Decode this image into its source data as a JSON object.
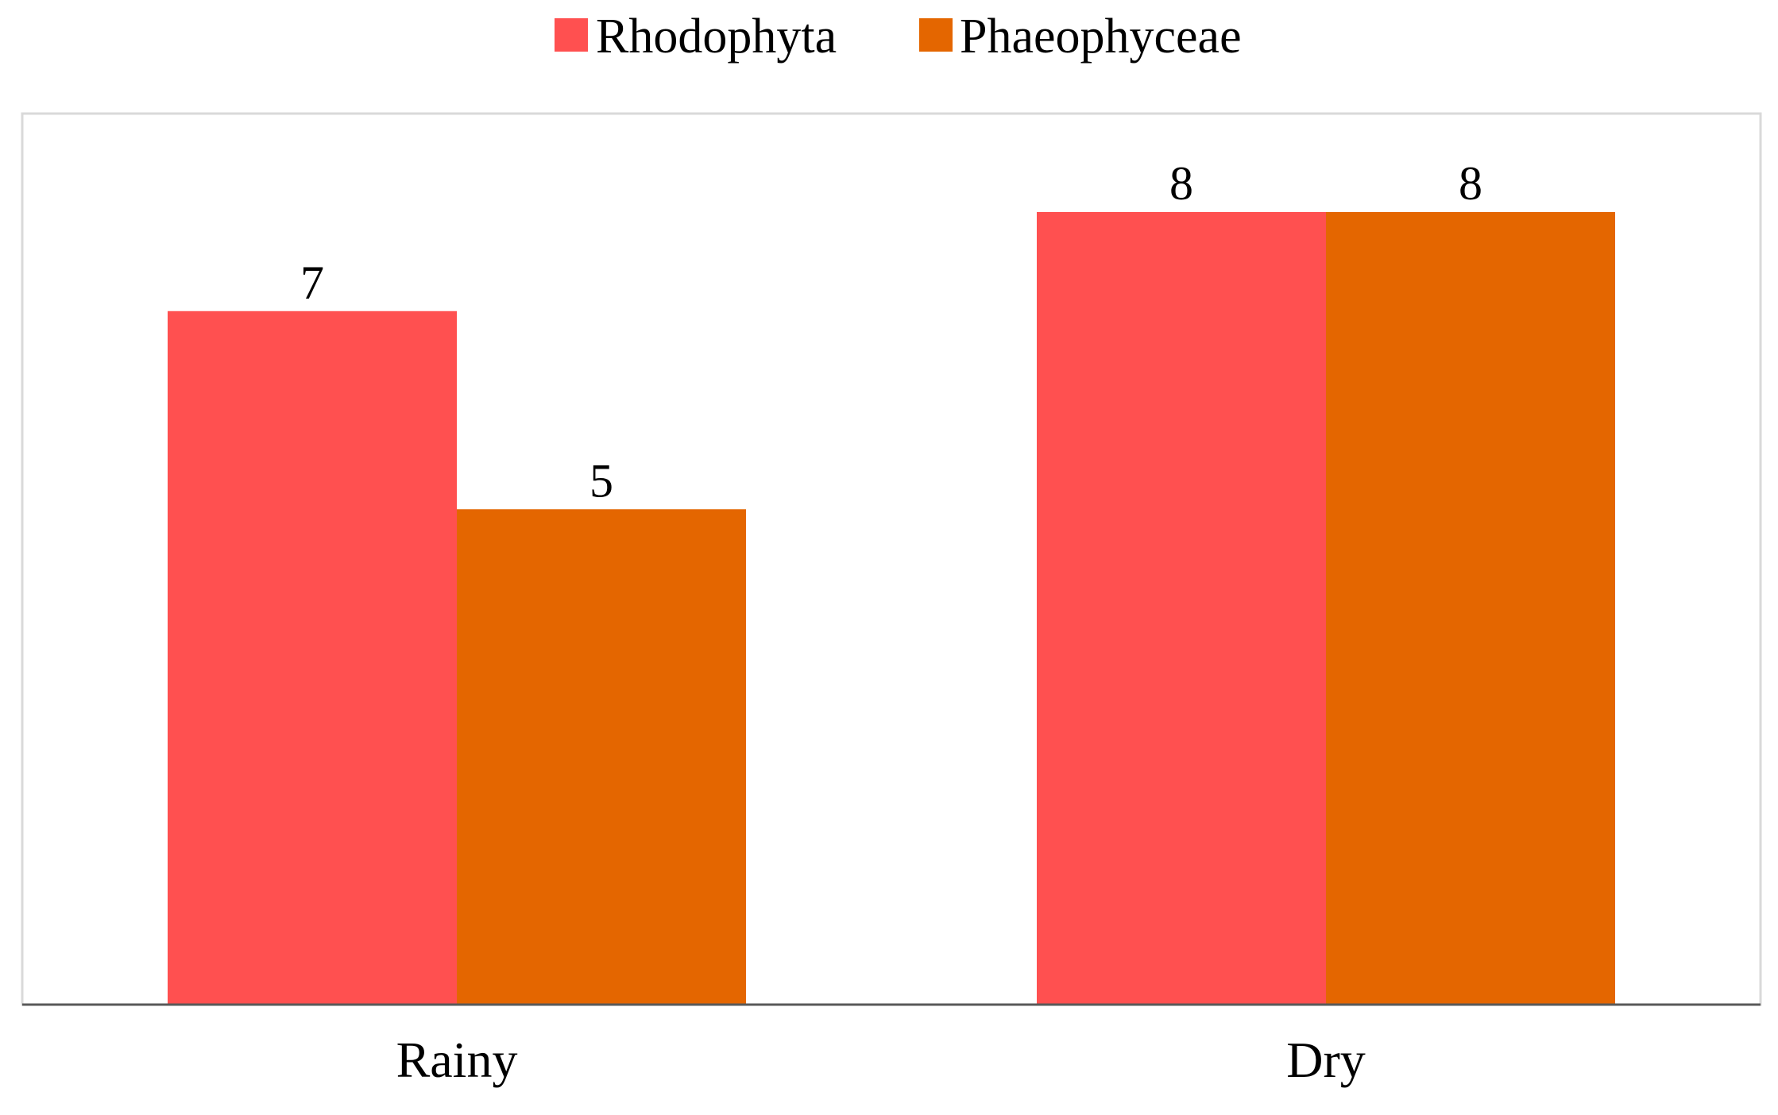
{
  "chart_data": {
    "type": "bar",
    "title": "",
    "xlabel": "",
    "ylabel": "",
    "categories": [
      "Rainy",
      "Dry"
    ],
    "series": [
      {
        "name": "Rhodophyta",
        "values": [
          7,
          8
        ],
        "color": "#FF5050"
      },
      {
        "name": "Phaeophyceae",
        "values": [
          5,
          8
        ],
        "color": "#E46600"
      }
    ],
    "ylim": [
      0,
      9
    ],
    "grid": false,
    "legend_position": "top-center",
    "data_labels": true,
    "plot_border_color": "#D9D9D9",
    "axis_color": "#595959"
  }
}
